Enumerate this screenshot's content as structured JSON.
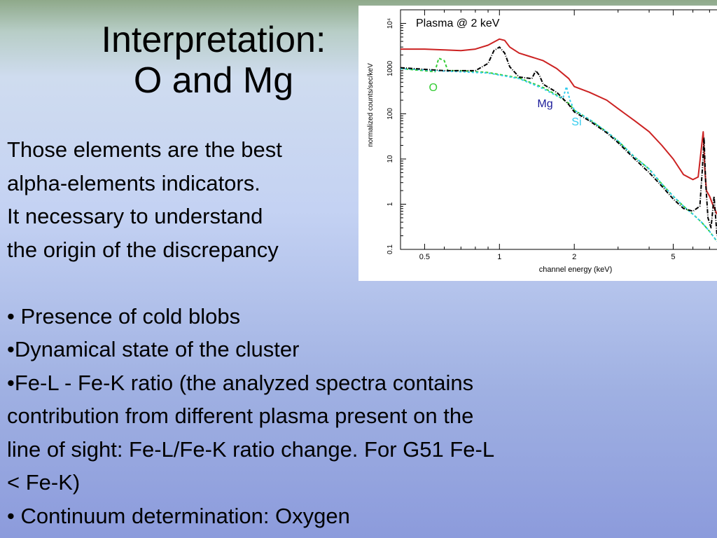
{
  "slide": {
    "title_line1": "Interpretation:",
    "title_line2": "O and Mg",
    "body_lines": [
      "Those elements are the best",
      "alpha-elements indicators.",
      "It necessary to understand",
      "the origin of the discrepancy",
      "",
      "• Presence of cold blobs",
      "•Dynamical state of the cluster",
      "•Fe-L - Fe-K ratio  (the analyzed spectra contains",
      "contribution from different plasma present on the",
      "line of sight: Fe-L/Fe-K ratio change. For G51 Fe-L",
      "< Fe-K)",
      "• Continuum determination: Oxygen"
    ]
  },
  "chart_data": {
    "type": "line",
    "title": "Plasma @ 2 keV",
    "xlabel": "channel energy (keV)",
    "ylabel": "normalized counts/sec/keV",
    "x_scale": "log",
    "y_scale": "log",
    "xlim": [
      0.4,
      7.5
    ],
    "ylim": [
      0.1,
      20000
    ],
    "x_ticks": [
      {
        "value": 0.5,
        "label": "0.5"
      },
      {
        "value": 1,
        "label": "1"
      },
      {
        "value": 2,
        "label": "2"
      },
      {
        "value": 5,
        "label": "5"
      }
    ],
    "y_ticks": [
      {
        "value": 0.1,
        "label": "0.1"
      },
      {
        "value": 1,
        "label": "1"
      },
      {
        "value": 10,
        "label": "10"
      },
      {
        "value": 100,
        "label": "100"
      },
      {
        "value": 1000,
        "label": "1000"
      },
      {
        "value": 10000,
        "label": "10⁴"
      }
    ],
    "annotations": [
      {
        "text": "O",
        "x": 0.52,
        "y": 320,
        "color": "#33cc33"
      },
      {
        "text": "Mg",
        "x": 1.42,
        "y": 140,
        "color": "#1a1a99"
      },
      {
        "text": "Si",
        "x": 1.95,
        "y": 55,
        "color": "#33ccee"
      }
    ],
    "series": [
      {
        "color": "#cc2222",
        "dash": "",
        "x": [
          0.4,
          0.5,
          0.6,
          0.7,
          0.8,
          0.9,
          1.0,
          1.05,
          1.1,
          1.2,
          1.35,
          1.5,
          1.7,
          1.9,
          2.0,
          2.3,
          2.7,
          3.0,
          3.5,
          4.0,
          4.5,
          5.0,
          5.5,
          6.0,
          6.3,
          6.6,
          6.7,
          6.8,
          7.0,
          7.2,
          7.5
        ],
        "y": [
          2700,
          2700,
          2600,
          2500,
          2700,
          3300,
          4500,
          4200,
          3000,
          2200,
          1800,
          1500,
          1000,
          600,
          400,
          300,
          200,
          130,
          70,
          40,
          20,
          10,
          4.5,
          3.5,
          4,
          40,
          6,
          2,
          1.5,
          1.0,
          0.6
        ]
      },
      {
        "color": "#33cc33",
        "dash": "4,3",
        "x": [
          0.4,
          0.5,
          0.55,
          0.57,
          0.6,
          0.62,
          0.7,
          0.9,
          1.2,
          1.5,
          1.7,
          1.9,
          2.0,
          2.3,
          2.7,
          3.0,
          3.5,
          4.0,
          4.5,
          5.0,
          5.5,
          6.0,
          6.5,
          7.0,
          7.5
        ],
        "y": [
          1000,
          900,
          850,
          1700,
          1500,
          900,
          900,
          820,
          620,
          380,
          260,
          170,
          120,
          75,
          40,
          25,
          11,
          6,
          2.8,
          1.5,
          0.9,
          0.6,
          0.4,
          0.25,
          0.15
        ]
      },
      {
        "color": "#33ccee",
        "dash": "3,3",
        "x": [
          0.4,
          0.6,
          0.9,
          1.2,
          1.5,
          1.7,
          1.8,
          1.86,
          1.92,
          2.0,
          2.3,
          2.7,
          3.0,
          3.5,
          4.0,
          4.5,
          5.0,
          5.5,
          6.0,
          6.5,
          7.0,
          7.5
        ],
        "y": [
          1000,
          880,
          800,
          600,
          360,
          250,
          220,
          400,
          200,
          120,
          75,
          40,
          25,
          11,
          6,
          2.8,
          1.5,
          0.9,
          0.6,
          0.4,
          0.25,
          0.15
        ]
      },
      {
        "color": "#000000",
        "dash": "6,2,1,2",
        "x": [
          0.4,
          0.6,
          0.8,
          0.9,
          0.95,
          1.0,
          1.05,
          1.1,
          1.2,
          1.35,
          1.4,
          1.45,
          1.5,
          1.7,
          1.9,
          2.0,
          2.3,
          2.7,
          3.0,
          3.5,
          4.0,
          4.5,
          5.0,
          5.5,
          6.0,
          6.4,
          6.55,
          6.65,
          6.75,
          6.9,
          7.1,
          7.3,
          7.5
        ],
        "y": [
          1050,
          900,
          900,
          1300,
          2500,
          3000,
          2200,
          1100,
          650,
          600,
          900,
          700,
          450,
          300,
          160,
          110,
          70,
          38,
          23,
          10,
          5,
          2.5,
          1.3,
          0.8,
          0.7,
          0.9,
          6,
          30,
          3,
          0.5,
          0.3,
          1.5,
          0.2
        ]
      }
    ]
  }
}
